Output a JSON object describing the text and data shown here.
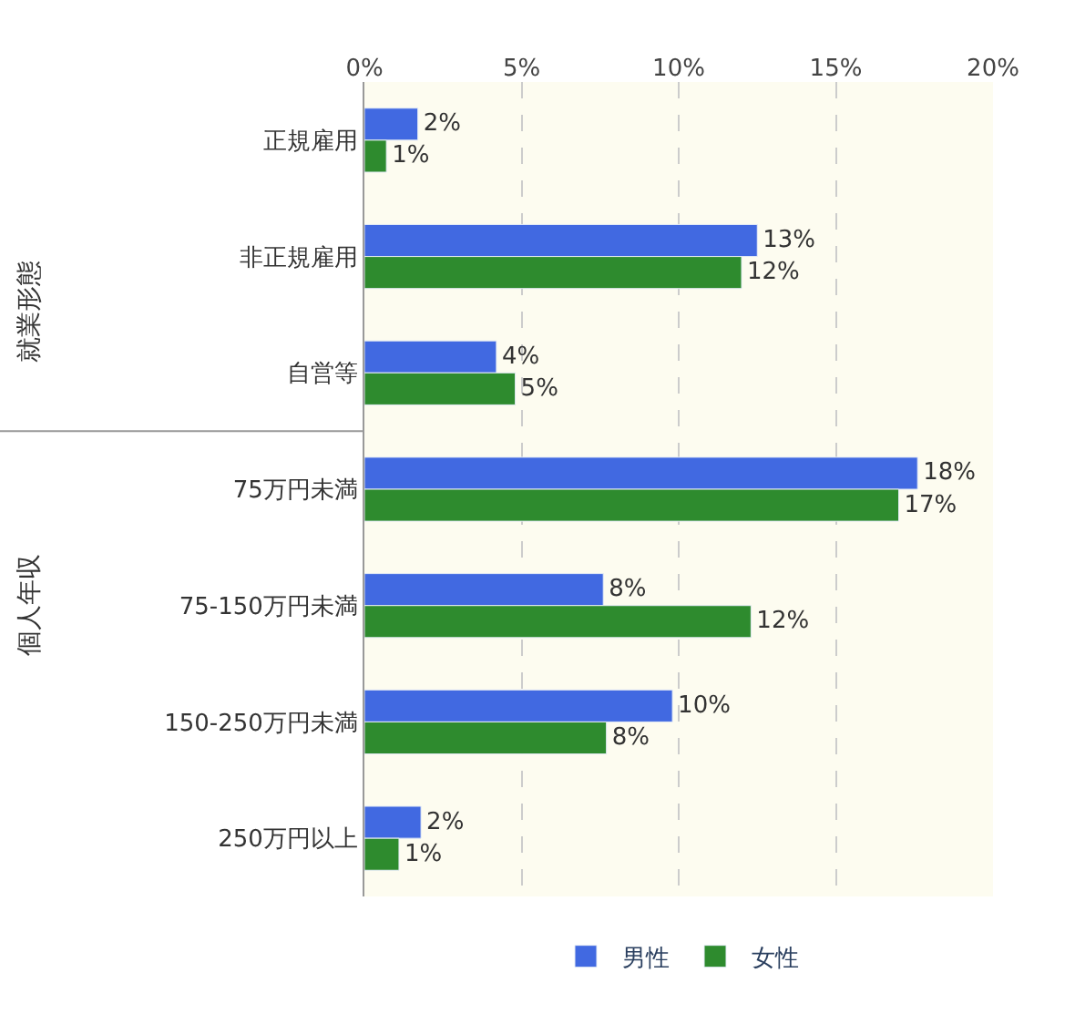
{
  "chart_data": {
    "type": "bar",
    "orientation": "horizontal",
    "categories": [
      "正規雇用",
      "非正規雇用",
      "自営等",
      "75万円未満",
      "75-150万円未満",
      "150-250万円未満",
      "250万円以上"
    ],
    "series": [
      {
        "name": "男性",
        "color": "#4169e1",
        "values": [
          1.7,
          12.5,
          4.2,
          17.6,
          7.6,
          9.8,
          1.8
        ],
        "value_labels": [
          "2%",
          "13%",
          "4%",
          "18%",
          "8%",
          "10%",
          "2%"
        ]
      },
      {
        "name": "女性",
        "color": "#2e8b2e",
        "values": [
          0.7,
          12.0,
          4.8,
          17.0,
          12.3,
          7.7,
          1.1
        ],
        "value_labels": [
          "1%",
          "12%",
          "5%",
          "17%",
          "12%",
          "8%",
          "1%"
        ]
      }
    ],
    "xlim": [
      0,
      20
    ],
    "xticks": [
      {
        "value": 0,
        "label": "0%"
      },
      {
        "value": 5,
        "label": "5%"
      },
      {
        "value": 10,
        "label": "10%"
      },
      {
        "value": 15,
        "label": "15%"
      },
      {
        "value": 20,
        "label": "20%"
      }
    ],
    "grid": "x",
    "legend": "bottom",
    "annotations": [
      "就業形態",
      "個人年収"
    ]
  }
}
